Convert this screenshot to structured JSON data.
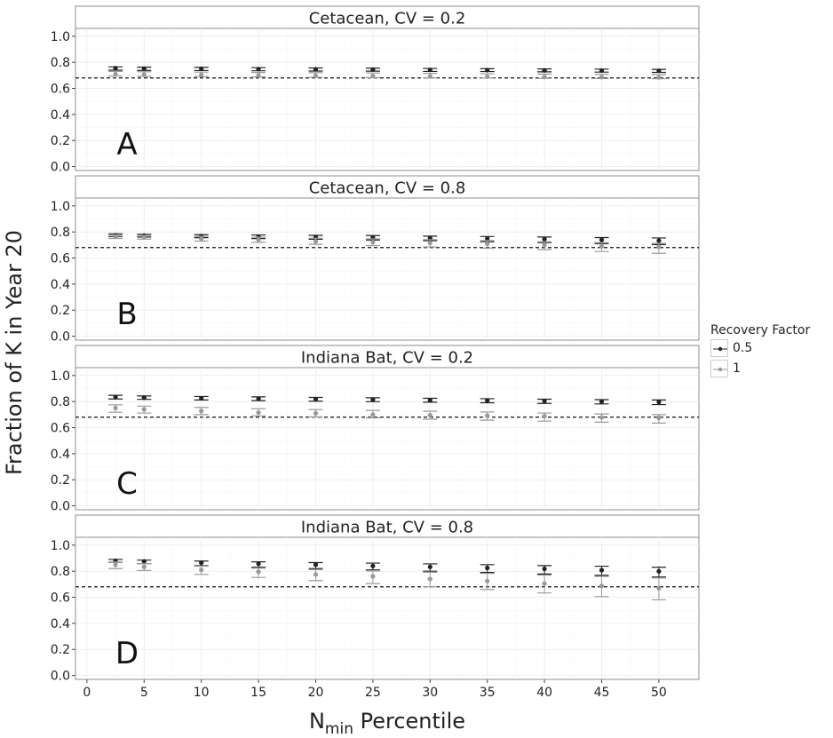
{
  "chart_data": {
    "type": "scatter",
    "ylabel": "Fraction of K in Year 20",
    "xlabel_main": "N",
    "xlabel_sub": "min",
    "xlabel_rest": " Percentile",
    "x_ticks": [
      0,
      5,
      10,
      15,
      20,
      25,
      30,
      35,
      40,
      45,
      50
    ],
    "y_ticks": [
      0.0,
      0.2,
      0.4,
      0.6,
      0.8,
      1.0
    ],
    "tick_labels_y": [
      "0.0",
      "0.2",
      "0.4",
      "0.6",
      "0.8",
      "1.0"
    ],
    "xlim": [
      -1,
      53.5
    ],
    "ylim": [
      -0.03,
      1.06
    ],
    "reference_line": 0.68,
    "grid": true,
    "legend": {
      "title": "Recovery Factor",
      "position": "right",
      "entries": [
        {
          "label": "0.5",
          "color": "#222222"
        },
        {
          "label": "1",
          "color": "#999999"
        }
      ]
    },
    "x": [
      2.5,
      5,
      10,
      15,
      20,
      25,
      30,
      35,
      40,
      45,
      50
    ],
    "panels": [
      {
        "title": "Cetacean, CV = 0.2",
        "letter": "A",
        "series": [
          {
            "name": "0.5",
            "color": "#222222",
            "mean": [
              0.755,
              0.752,
              0.75,
              0.748,
              0.746,
              0.744,
              0.742,
              0.74,
              0.738,
              0.737,
              0.735
            ],
            "lower": [
              0.74,
              0.738,
              0.737,
              0.735,
              0.733,
              0.732,
              0.73,
              0.729,
              0.727,
              0.725,
              0.723
            ],
            "upper": [
              0.765,
              0.763,
              0.761,
              0.759,
              0.757,
              0.755,
              0.753,
              0.751,
              0.749,
              0.748,
              0.746
            ]
          },
          {
            "name": "1",
            "color": "#999999",
            "mean": [
              0.71,
              0.707,
              0.704,
              0.7,
              0.697,
              0.695,
              0.692,
              0.69,
              0.688,
              0.686,
              0.684
            ],
            "lower": [
              0.695,
              0.692,
              0.69,
              0.688,
              0.685,
              0.683,
              0.681,
              0.679,
              0.677,
              0.676,
              0.674
            ],
            "upper": [
              0.73,
              0.728,
              0.725,
              0.722,
              0.72,
              0.718,
              0.715,
              0.712,
              0.71,
              0.708,
              0.706
            ]
          }
        ]
      },
      {
        "title": "Cetacean, CV = 0.8",
        "letter": "B",
        "series": [
          {
            "name": "0.5",
            "color": "#222222",
            "mean": [
              0.775,
              0.772,
              0.768,
              0.764,
              0.76,
              0.757,
              0.753,
              0.749,
              0.744,
              0.739,
              0.733
            ],
            "lower": [
              0.765,
              0.761,
              0.756,
              0.749,
              0.744,
              0.738,
              0.733,
              0.725,
              0.718,
              0.711,
              0.703
            ],
            "upper": [
              0.785,
              0.782,
              0.779,
              0.777,
              0.774,
              0.772,
              0.768,
              0.765,
              0.761,
              0.757,
              0.754
            ]
          },
          {
            "name": "1",
            "color": "#999999",
            "mean": [
              0.765,
              0.76,
              0.748,
              0.74,
              0.728,
              0.722,
              0.715,
              0.709,
              0.7,
              0.69,
              0.685
            ],
            "lower": [
              0.75,
              0.745,
              0.73,
              0.72,
              0.705,
              0.695,
              0.685,
              0.675,
              0.665,
              0.65,
              0.636
            ],
            "upper": [
              0.778,
              0.774,
              0.766,
              0.76,
              0.752,
              0.747,
              0.741,
              0.734,
              0.725,
              0.718,
              0.713
            ]
          }
        ]
      },
      {
        "title": "Indiana Bat, CV = 0.2",
        "letter": "C",
        "series": [
          {
            "name": "0.5",
            "color": "#222222",
            "mean": [
              0.835,
              0.83,
              0.825,
              0.822,
              0.818,
              0.815,
              0.81,
              0.808,
              0.804,
              0.8,
              0.797
            ],
            "lower": [
              0.82,
              0.817,
              0.812,
              0.807,
              0.803,
              0.799,
              0.795,
              0.791,
              0.786,
              0.782,
              0.777
            ],
            "upper": [
              0.848,
              0.843,
              0.839,
              0.836,
              0.832,
              0.829,
              0.825,
              0.822,
              0.818,
              0.815,
              0.812
            ]
          },
          {
            "name": "1",
            "color": "#999999",
            "mean": [
              0.75,
              0.74,
              0.727,
              0.715,
              0.71,
              0.7,
              0.695,
              0.692,
              0.688,
              0.678,
              0.675
            ],
            "lower": [
              0.718,
              0.712,
              0.7,
              0.69,
              0.683,
              0.675,
              0.665,
              0.657,
              0.65,
              0.642,
              0.635
            ],
            "upper": [
              0.775,
              0.765,
              0.755,
              0.745,
              0.738,
              0.732,
              0.726,
              0.72,
              0.712,
              0.705,
              0.7
            ]
          }
        ]
      },
      {
        "title": "Indiana Bat, CV = 0.8",
        "letter": "D",
        "series": [
          {
            "name": "0.5",
            "color": "#222222",
            "mean": [
              0.88,
              0.875,
              0.865,
              0.857,
              0.85,
              0.84,
              0.833,
              0.825,
              0.818,
              0.808,
              0.799
            ],
            "lower": [
              0.868,
              0.858,
              0.842,
              0.83,
              0.82,
              0.81,
              0.8,
              0.79,
              0.778,
              0.768,
              0.755
            ],
            "upper": [
              0.89,
              0.885,
              0.878,
              0.872,
              0.866,
              0.862,
              0.856,
              0.85,
              0.843,
              0.838,
              0.83
            ]
          },
          {
            "name": "1",
            "color": "#999999",
            "mean": [
              0.85,
              0.833,
              0.81,
              0.795,
              0.775,
              0.76,
              0.74,
              0.725,
              0.705,
              0.687,
              0.67
            ],
            "lower": [
              0.82,
              0.805,
              0.775,
              0.752,
              0.728,
              0.705,
              0.68,
              0.66,
              0.633,
              0.605,
              0.58
            ],
            "upper": [
              0.87,
              0.858,
              0.838,
              0.823,
              0.812,
              0.802,
              0.792,
              0.783,
              0.77,
              0.76,
              0.748
            ]
          }
        ]
      }
    ]
  }
}
